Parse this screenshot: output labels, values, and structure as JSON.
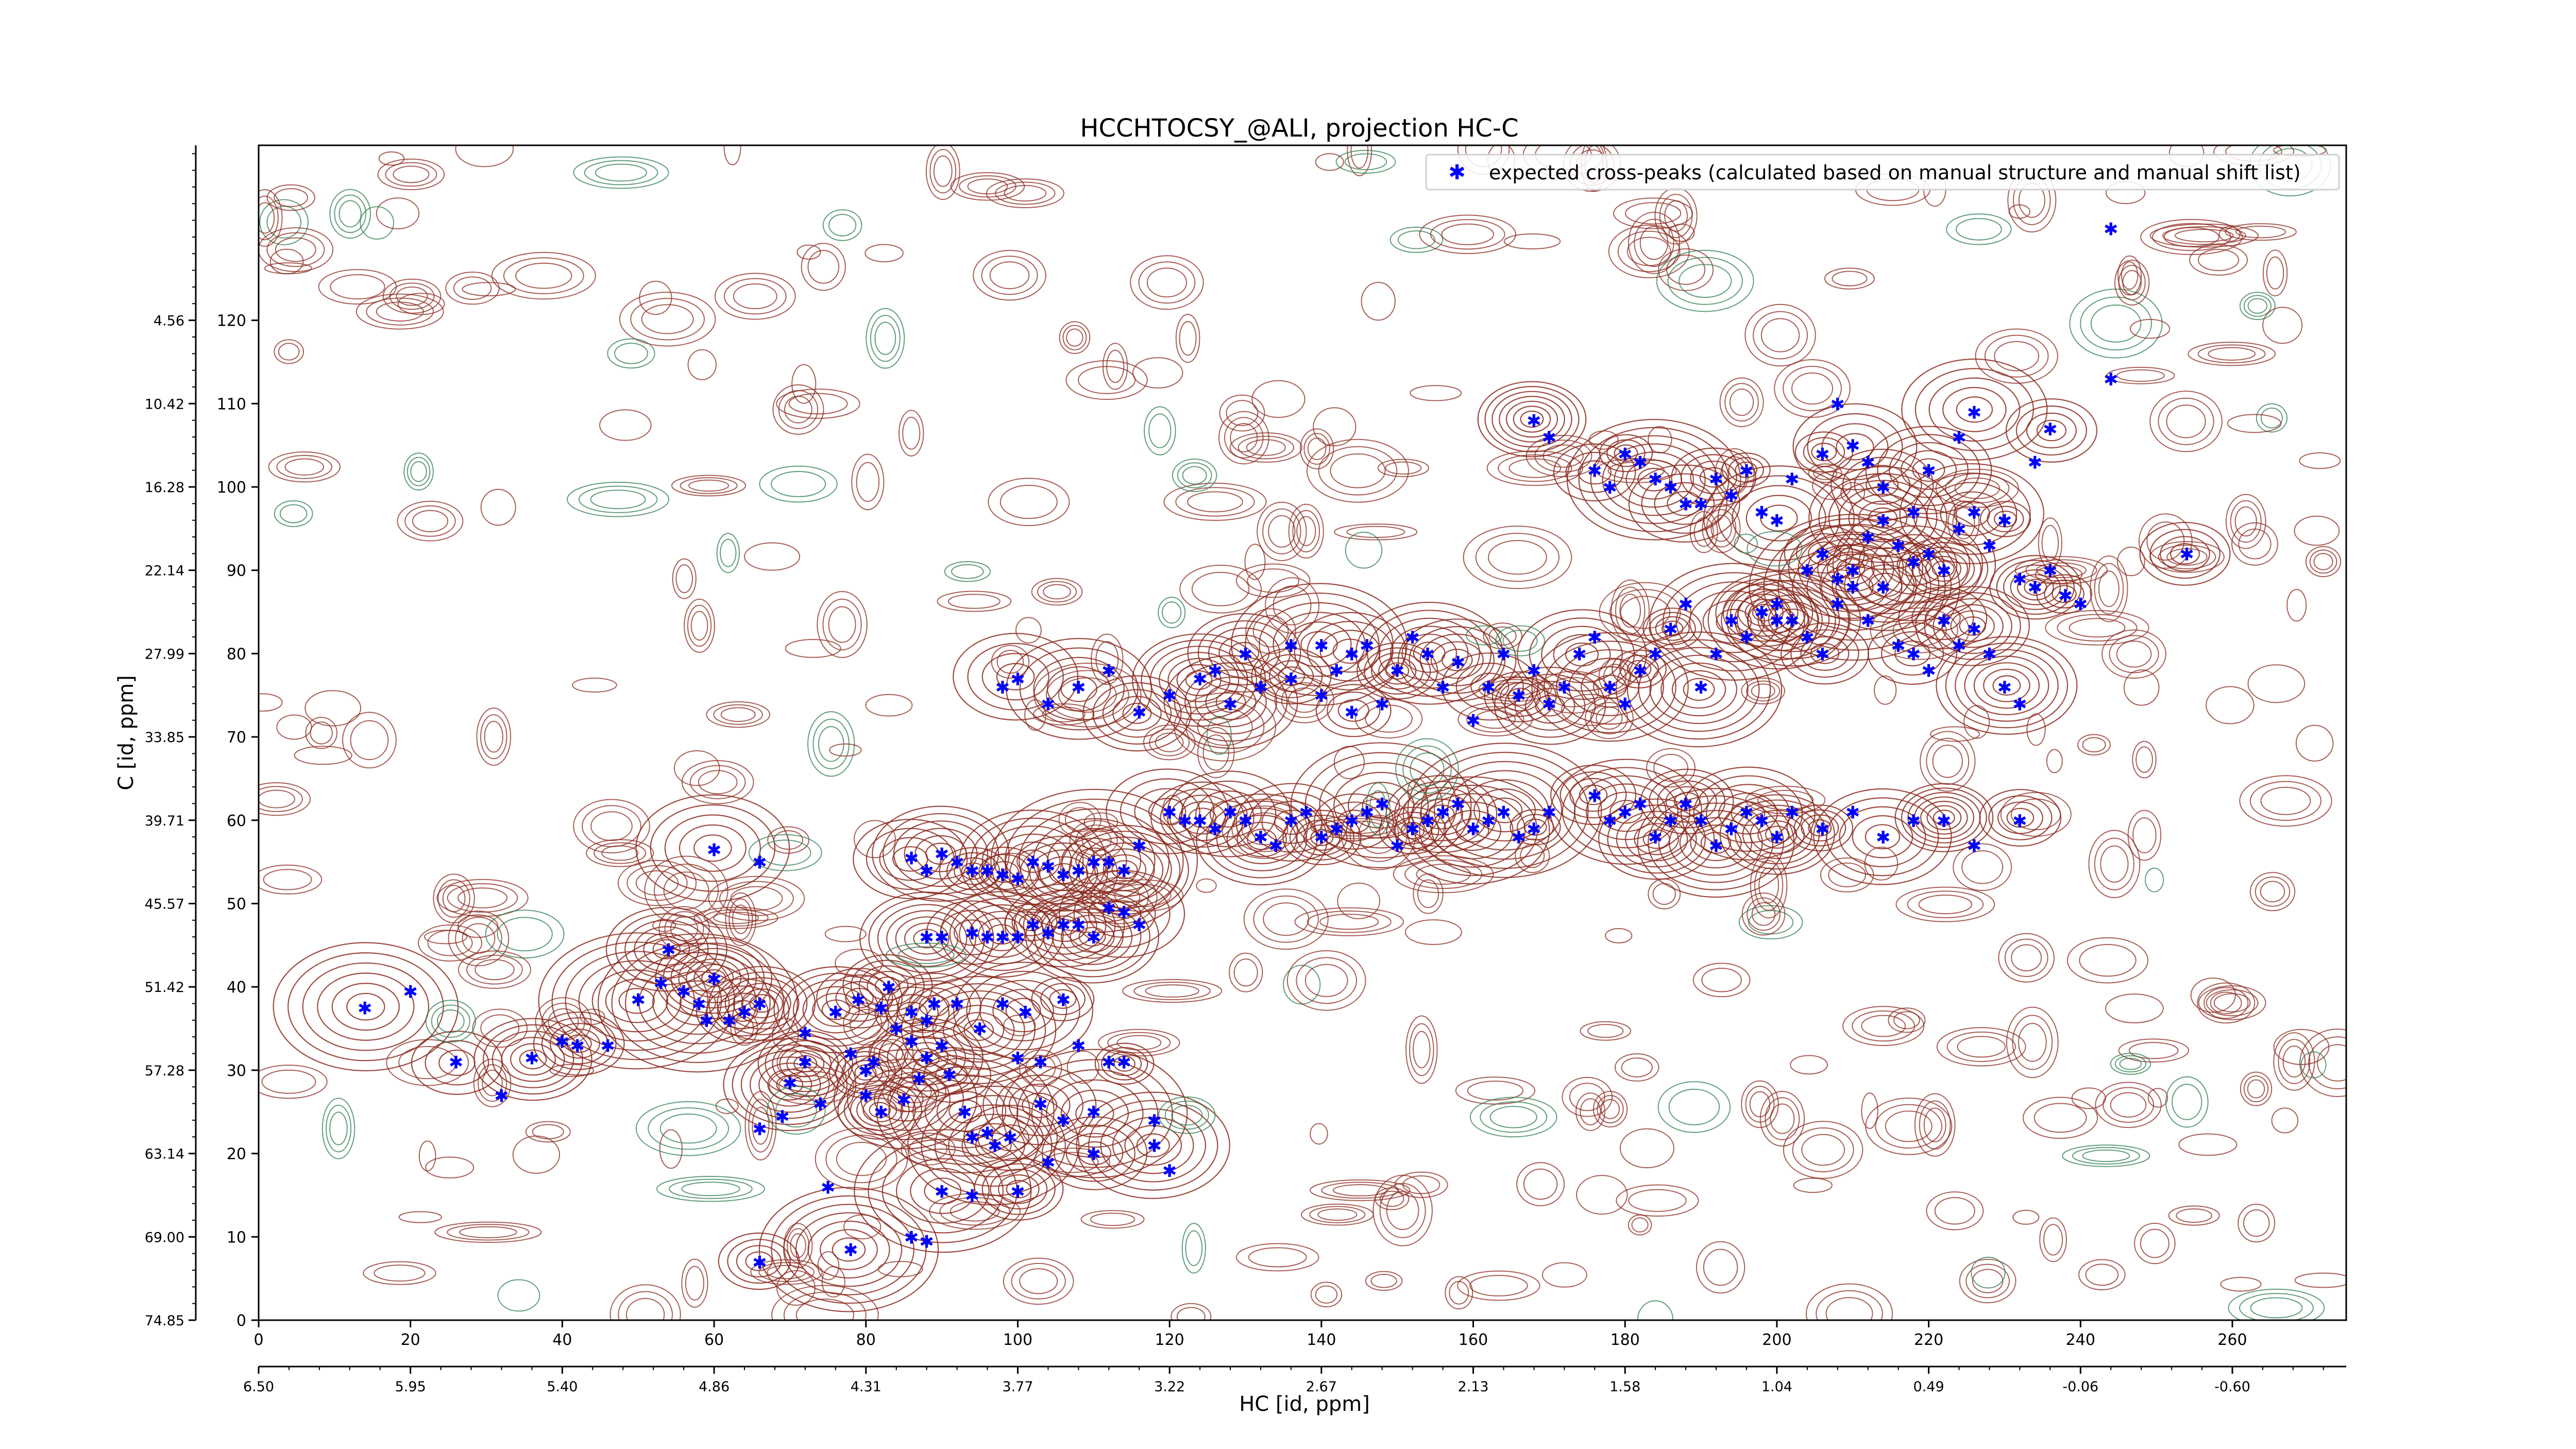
{
  "chart_data": {
    "type": "scatter",
    "title": "HCCHTOCSY_@ALI, projection HC-C",
    "xlabel": "HC [id, ppm]",
    "ylabel": "C [id, ppm]",
    "xlim": [
      0,
      275
    ],
    "ylim": [
      0,
      141
    ],
    "x_ticks": [
      0,
      20,
      40,
      60,
      80,
      100,
      120,
      140,
      160,
      180,
      200,
      220,
      240,
      260
    ],
    "x_tick_labels": [
      "0",
      "20",
      "40",
      "60",
      "80",
      "100",
      "120",
      "140",
      "160",
      "180",
      "200",
      "220",
      "240",
      "260"
    ],
    "x_secondary_ticks": [
      0,
      20,
      40,
      60,
      80,
      100,
      120,
      140,
      160,
      180,
      200,
      220,
      240,
      260
    ],
    "x_secondary_labels": [
      "6.50",
      "5.95",
      "5.40",
      "4.86",
      "4.31",
      "3.77",
      "3.22",
      "2.67",
      "2.13",
      "1.58",
      "1.04",
      "0.49",
      "-0.06",
      "-0.60"
    ],
    "y_ticks": [
      0,
      10,
      20,
      30,
      40,
      50,
      60,
      70,
      80,
      90,
      100,
      110,
      120
    ],
    "y_tick_labels": [
      "0",
      "10",
      "20",
      "30",
      "40",
      "50",
      "60",
      "70",
      "80",
      "90",
      "100",
      "110",
      "120"
    ],
    "y_secondary_ticks": [
      0,
      10,
      20,
      30,
      40,
      50,
      60,
      70,
      80,
      90,
      100,
      110,
      120
    ],
    "y_secondary_labels": [
      "74.85",
      "69.00",
      "63.14",
      "57.28",
      "51.42",
      "45.57",
      "39.71",
      "33.85",
      "27.99",
      "22.14",
      "16.28",
      "10.42",
      "4.56"
    ],
    "legend": {
      "location": "top-right",
      "entries": [
        {
          "label": "expected cross-peaks (calculated based on manual structure and manual shift list)",
          "color": "#0000ff",
          "marker": "*"
        }
      ]
    },
    "colors": {
      "peaks": "#0000ff",
      "positive_contours": "#8b2a1e",
      "negative_contours": "#2e7d4f"
    },
    "grid": false,
    "series": [
      {
        "name": "expected cross-peaks (calculated based on manual structure and manual shift list)",
        "points": [
          [
            14,
            37.5
          ],
          [
            20,
            39.5
          ],
          [
            26,
            31
          ],
          [
            32,
            27
          ],
          [
            36,
            31.5
          ],
          [
            40,
            33.5
          ],
          [
            42,
            33
          ],
          [
            46,
            33
          ],
          [
            50,
            38.5
          ],
          [
            53,
            40.5
          ],
          [
            54,
            44.5
          ],
          [
            56,
            39.5
          ],
          [
            58,
            38
          ],
          [
            59,
            36
          ],
          [
            60,
            41
          ],
          [
            62,
            36
          ],
          [
            64,
            37
          ],
          [
            66,
            23
          ],
          [
            66,
            38
          ],
          [
            69,
            24.5
          ],
          [
            70,
            28.5
          ],
          [
            72,
            34.5
          ],
          [
            72,
            31
          ],
          [
            74,
            26
          ],
          [
            76,
            37
          ],
          [
            78,
            32
          ],
          [
            79,
            38.5
          ],
          [
            80,
            27
          ],
          [
            80,
            30
          ],
          [
            81,
            31
          ],
          [
            82,
            25
          ],
          [
            82,
            37.5
          ],
          [
            83,
            40
          ],
          [
            84,
            35
          ],
          [
            85,
            26.5
          ],
          [
            86,
            33.5
          ],
          [
            86,
            37
          ],
          [
            87,
            29
          ],
          [
            88,
            31.5
          ],
          [
            88,
            36
          ],
          [
            89,
            38
          ],
          [
            90,
            33
          ],
          [
            91,
            29.5
          ],
          [
            92,
            38
          ],
          [
            93,
            25
          ],
          [
            94,
            22
          ],
          [
            95,
            35
          ],
          [
            96,
            22.5
          ],
          [
            97,
            21
          ],
          [
            98,
            38
          ],
          [
            99,
            22
          ],
          [
            100,
            31.5
          ],
          [
            101,
            37
          ],
          [
            103,
            31
          ],
          [
            103,
            26
          ],
          [
            106,
            24
          ],
          [
            106,
            38.5
          ],
          [
            108,
            33
          ],
          [
            110,
            25
          ],
          [
            112,
            31
          ],
          [
            114,
            31
          ],
          [
            118,
            24
          ],
          [
            118,
            21
          ],
          [
            88,
            9.5
          ],
          [
            90,
            15.5
          ],
          [
            94,
            15
          ],
          [
            100,
            15.5
          ],
          [
            104,
            19
          ],
          [
            110,
            20
          ],
          [
            120,
            18
          ],
          [
            66,
            7
          ],
          [
            75,
            16
          ],
          [
            78,
            8.5
          ],
          [
            86,
            10
          ],
          [
            88,
            46
          ],
          [
            90,
            46
          ],
          [
            94,
            46.5
          ],
          [
            96,
            46
          ],
          [
            98,
            46
          ],
          [
            100,
            46
          ],
          [
            102,
            47.5
          ],
          [
            104,
            46.5
          ],
          [
            106,
            47.5
          ],
          [
            108,
            47.5
          ],
          [
            110,
            46
          ],
          [
            112,
            49.5
          ],
          [
            114,
            49
          ],
          [
            116,
            47.5
          ],
          [
            60,
            56.5
          ],
          [
            66,
            55
          ],
          [
            86,
            55.5
          ],
          [
            88,
            54
          ],
          [
            90,
            56
          ],
          [
            92,
            55
          ],
          [
            94,
            54
          ],
          [
            96,
            54
          ],
          [
            98,
            53.5
          ],
          [
            100,
            53
          ],
          [
            102,
            55
          ],
          [
            104,
            54.5
          ],
          [
            106,
            53.5
          ],
          [
            108,
            54
          ],
          [
            110,
            55
          ],
          [
            112,
            55
          ],
          [
            114,
            54
          ],
          [
            116,
            57
          ],
          [
            120,
            61
          ],
          [
            122,
            60
          ],
          [
            124,
            60
          ],
          [
            126,
            59
          ],
          [
            128,
            61
          ],
          [
            130,
            60
          ],
          [
            132,
            58
          ],
          [
            134,
            57
          ],
          [
            136,
            60
          ],
          [
            138,
            61
          ],
          [
            140,
            58
          ],
          [
            142,
            59
          ],
          [
            144,
            60
          ],
          [
            146,
            61
          ],
          [
            148,
            62
          ],
          [
            150,
            57
          ],
          [
            152,
            59
          ],
          [
            154,
            60
          ],
          [
            156,
            61
          ],
          [
            158,
            62
          ],
          [
            160,
            59
          ],
          [
            162,
            60
          ],
          [
            164,
            61
          ],
          [
            166,
            58
          ],
          [
            168,
            59
          ],
          [
            170,
            61
          ],
          [
            130,
            80
          ],
          [
            136,
            81
          ],
          [
            140,
            81
          ],
          [
            142,
            78
          ],
          [
            144,
            80
          ],
          [
            146,
            81
          ],
          [
            150,
            78
          ],
          [
            152,
            82
          ],
          [
            154,
            80
          ],
          [
            156,
            76
          ],
          [
            158,
            79
          ],
          [
            160,
            72
          ],
          [
            162,
            76
          ],
          [
            164,
            80
          ],
          [
            166,
            75
          ],
          [
            168,
            78
          ],
          [
            170,
            74
          ],
          [
            172,
            76
          ],
          [
            174,
            80
          ],
          [
            176,
            82
          ],
          [
            178,
            76
          ],
          [
            180,
            74
          ],
          [
            182,
            78
          ],
          [
            184,
            80
          ],
          [
            186,
            83
          ],
          [
            188,
            86
          ],
          [
            190,
            76
          ],
          [
            192,
            80
          ],
          [
            194,
            84
          ],
          [
            196,
            82
          ],
          [
            198,
            85
          ],
          [
            200,
            86
          ],
          [
            202,
            84
          ],
          [
            204,
            90
          ],
          [
            206,
            92
          ],
          [
            208,
            89
          ],
          [
            210,
            90
          ],
          [
            212,
            94
          ],
          [
            214,
            96
          ],
          [
            216,
            93
          ],
          [
            218,
            91
          ],
          [
            220,
            92
          ],
          [
            222,
            90
          ],
          [
            224,
            95
          ],
          [
            226,
            97
          ],
          [
            228,
            93
          ],
          [
            230,
            96
          ],
          [
            232,
            89
          ],
          [
            234,
            88
          ],
          [
            236,
            90
          ],
          [
            238,
            87
          ],
          [
            240,
            86
          ],
          [
            168,
            108
          ],
          [
            170,
            106
          ],
          [
            176,
            102
          ],
          [
            178,
            100
          ],
          [
            180,
            104
          ],
          [
            182,
            103
          ],
          [
            184,
            101
          ],
          [
            186,
            100
          ],
          [
            188,
            98
          ],
          [
            190,
            98
          ],
          [
            192,
            101
          ],
          [
            194,
            99
          ],
          [
            196,
            102
          ],
          [
            198,
            97
          ],
          [
            200,
            96
          ],
          [
            202,
            101
          ],
          [
            206,
            104
          ],
          [
            208,
            110
          ],
          [
            210,
            105
          ],
          [
            212,
            103
          ],
          [
            214,
            100
          ],
          [
            218,
            97
          ],
          [
            220,
            102
          ],
          [
            224,
            106
          ],
          [
            226,
            109
          ],
          [
            234,
            103
          ],
          [
            236,
            107
          ],
          [
            244,
            113
          ],
          [
            254,
            92
          ],
          [
            244,
            131
          ],
          [
            200,
            84
          ],
          [
            204,
            82
          ],
          [
            206,
            80
          ],
          [
            208,
            86
          ],
          [
            210,
            88
          ],
          [
            212,
            84
          ],
          [
            214,
            88
          ],
          [
            216,
            81
          ],
          [
            218,
            80
          ],
          [
            220,
            78
          ],
          [
            222,
            84
          ],
          [
            224,
            81
          ],
          [
            226,
            83
          ],
          [
            228,
            80
          ],
          [
            230,
            76
          ],
          [
            232,
            74
          ],
          [
            176,
            63
          ],
          [
            178,
            60
          ],
          [
            180,
            61
          ],
          [
            182,
            62
          ],
          [
            184,
            58
          ],
          [
            186,
            60
          ],
          [
            188,
            62
          ],
          [
            190,
            60
          ],
          [
            192,
            57
          ],
          [
            194,
            59
          ],
          [
            196,
            61
          ],
          [
            198,
            60
          ],
          [
            200,
            58
          ],
          [
            202,
            61
          ],
          [
            206,
            59
          ],
          [
            210,
            61
          ],
          [
            214,
            58
          ],
          [
            218,
            60
          ],
          [
            222,
            60
          ],
          [
            226,
            57
          ],
          [
            232,
            60
          ],
          [
            98,
            76
          ],
          [
            100,
            77
          ],
          [
            104,
            74
          ],
          [
            108,
            76
          ],
          [
            112,
            78
          ],
          [
            116,
            73
          ],
          [
            120,
            75
          ],
          [
            124,
            77
          ],
          [
            126,
            78
          ],
          [
            128,
            74
          ],
          [
            132,
            76
          ],
          [
            136,
            77
          ],
          [
            140,
            75
          ],
          [
            144,
            73
          ],
          [
            148,
            74
          ]
        ]
      }
    ]
  }
}
